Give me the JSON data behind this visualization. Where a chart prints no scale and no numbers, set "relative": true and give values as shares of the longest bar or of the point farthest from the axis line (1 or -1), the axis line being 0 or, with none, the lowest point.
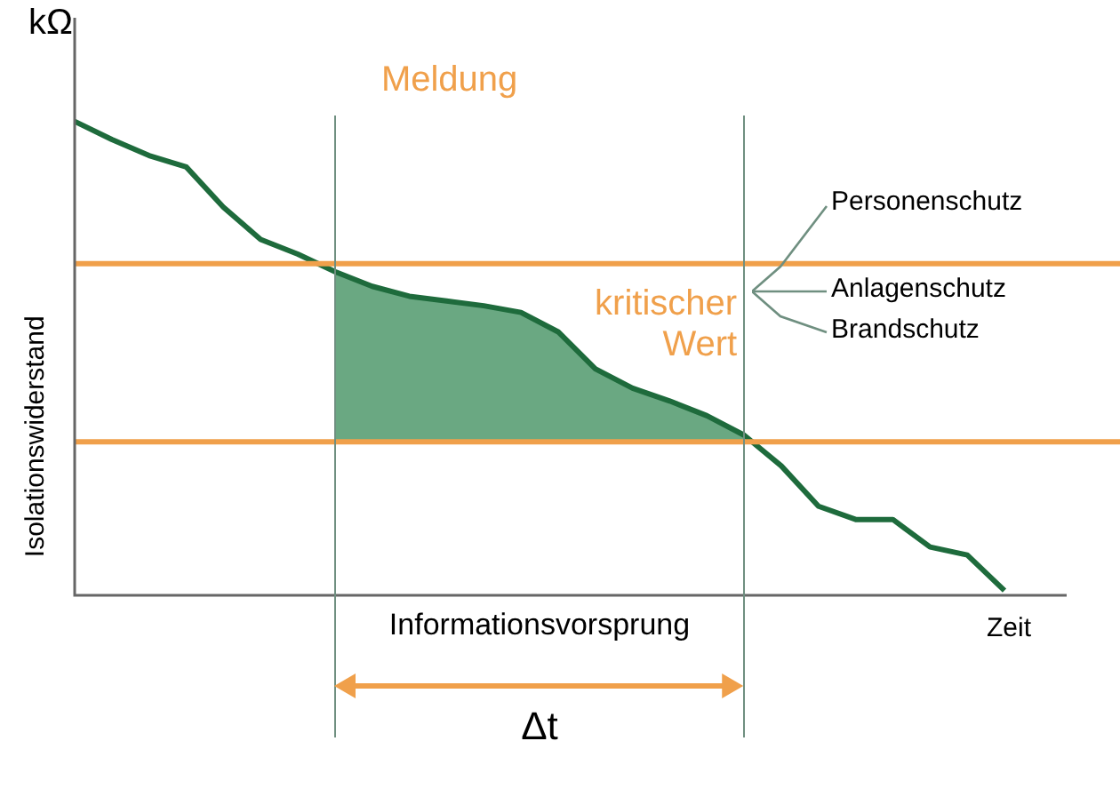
{
  "chart_data": {
    "type": "line",
    "relative": true,
    "ylabel": "Isolationswiderstand",
    "xlabel": "Zeit",
    "marker": "none",
    "legend": false,
    "categories": [
      null,
      null,
      null,
      null,
      null,
      null,
      null,
      null,
      null,
      null,
      null,
      null,
      null,
      null,
      null,
      null,
      null,
      null,
      null,
      null,
      null,
      null,
      null,
      null,
      null,
      null
    ],
    "series": [
      {
        "type": "line",
        "color": "#1e6b3c",
        "values": [
          1.0,
          0.962,
          0.928,
          0.904,
          0.819,
          0.751,
          0.72,
          0.683,
          0.652,
          0.631,
          0.621,
          0.611,
          0.597,
          0.556,
          0.478,
          0.437,
          0.41,
          0.379,
          0.338,
          0.273,
          0.188,
          0.16,
          0.16,
          0.102,
          0.085,
          0.01
        ]
      },
      {
        "type": "area",
        "color": "#6aa882",
        "values": [
          null,
          null,
          null,
          null,
          null,
          null,
          null,
          0.683,
          0.652,
          0.631,
          0.621,
          0.611,
          0.597,
          0.556,
          0.478,
          0.437,
          0.41,
          0.379,
          0.338,
          null,
          null,
          null,
          null,
          null,
          null,
          null
        ]
      }
    ],
    "ref_lines": [
      {
        "axis": "y",
        "value": 0.7,
        "color": "#f0a04b"
      },
      {
        "axis": "y",
        "value": 0.324,
        "color": "#f0a04b"
      }
    ],
    "annotations": [
      "kΩ",
      "Meldung",
      "kritischer Wert",
      "Personenschutz",
      "Anlagenschutz",
      "Brandschutz",
      "Informationsvorsprung",
      "Δt"
    ]
  }
}
